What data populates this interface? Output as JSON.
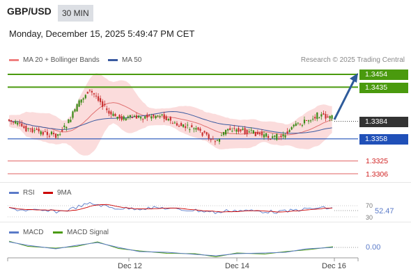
{
  "header": {
    "symbol": "GBP/USD",
    "timeframe": "30 MIN",
    "datetime": "Monday, December 15, 2025 5:49:47 PM CET"
  },
  "legend": {
    "ma20_label": "MA 20 + Bollinger Bands",
    "ma50_label": "MA 50",
    "research": "Research © 2025 Trading Central",
    "rsi_label": "RSI",
    "rsi_ma_label": "9MA",
    "macd_label": "MACD",
    "macd_signal_label": "MACD Signal"
  },
  "colors": {
    "green_level": "#4a9a0e",
    "blue_level": "#2050b8",
    "red_level": "#e06060",
    "candle_up": "#3a8a16",
    "candle_down": "#c83030",
    "bb_fill": "#fad6d6",
    "ma20": "#e07070",
    "ma50": "#3a5aa0",
    "arrow": "#2e5b9a",
    "price_tag": "#333333"
  },
  "levels": {
    "resistance_2": "1.3454",
    "resistance_1": "1.3435",
    "current": "1.3384",
    "pivot": "1.3358",
    "support_1": "1.3325",
    "support_2": "1.3306"
  },
  "rsi": {
    "value": "52.47",
    "upper": "70",
    "lower": "30"
  },
  "macd": {
    "value": "0.00"
  },
  "x_axis": [
    "Dec 12",
    "Dec 14",
    "Dec 16"
  ]
}
